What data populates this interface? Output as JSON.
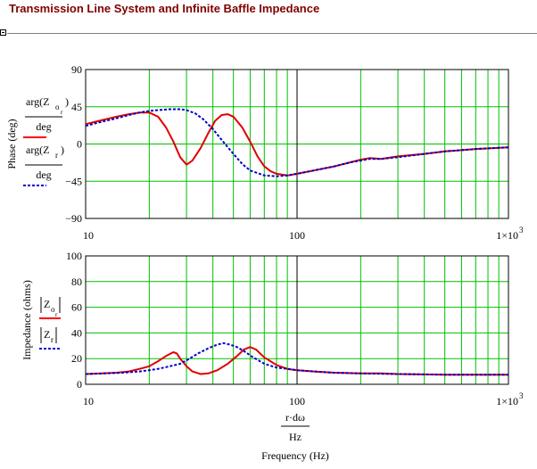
{
  "page": {
    "title": "Transmission Line System and Infinite Baffle Impedance",
    "accent_color": "#800000",
    "region_marker_icon": "collapse-box-icon"
  },
  "chart_data": [
    {
      "type": "line",
      "xscale": "log",
      "xlim": [
        10,
        1000
      ],
      "ylim": [
        -90,
        90
      ],
      "grid": true,
      "grid_color": "#00c000",
      "ylabel": "Phase (deg)",
      "yticks": [
        "90",
        "45",
        "0",
        "−45",
        "−90"
      ],
      "ytick_values": [
        90,
        45,
        0,
        -45,
        -90
      ],
      "xticks": [
        "10",
        "100",
        "1×10"
      ],
      "xtick_exp": "3",
      "legend": [
        {
          "num_fn": "arg",
          "var": "Z",
          "sub": "o",
          "subsub": "r",
          "den": "deg",
          "color": "#ff0000",
          "style": "solid"
        },
        {
          "num_fn": "arg",
          "var": "Z",
          "sub": "r",
          "subsub": "",
          "den": "deg",
          "color": "#0000cc",
          "style": "dotted"
        }
      ],
      "series": [
        {
          "color": "#e00000",
          "style": "solid",
          "points": [
            [
              10,
              24
            ],
            [
              12,
              29
            ],
            [
              14,
              33
            ],
            [
              16,
              36
            ],
            [
              18,
              38
            ],
            [
              20,
              38
            ],
            [
              22,
              33
            ],
            [
              24,
              20
            ],
            [
              26,
              3
            ],
            [
              28,
              -16
            ],
            [
              30,
              -25
            ],
            [
              32,
              -20
            ],
            [
              35,
              -5
            ],
            [
              38,
              13
            ],
            [
              41,
              28
            ],
            [
              44,
              35
            ],
            [
              47,
              36
            ],
            [
              50,
              33
            ],
            [
              55,
              20
            ],
            [
              60,
              3
            ],
            [
              65,
              -15
            ],
            [
              70,
              -27
            ],
            [
              75,
              -33
            ],
            [
              80,
              -36
            ],
            [
              90,
              -38
            ],
            [
              100,
              -36
            ],
            [
              120,
              -32
            ],
            [
              150,
              -27
            ],
            [
              180,
              -22
            ],
            [
              200,
              -19
            ],
            [
              220,
              -17
            ],
            [
              250,
              -18
            ],
            [
              300,
              -15
            ],
            [
              400,
              -12
            ],
            [
              500,
              -9
            ],
            [
              700,
              -6
            ],
            [
              1000,
              -4
            ]
          ]
        },
        {
          "color": "#0000cc",
          "style": "dotted",
          "points": [
            [
              10,
              22
            ],
            [
              12,
              27
            ],
            [
              14,
              31
            ],
            [
              16,
              35
            ],
            [
              18,
              38
            ],
            [
              20,
              40
            ],
            [
              22,
              41
            ],
            [
              25,
              42
            ],
            [
              28,
              42
            ],
            [
              30,
              41
            ],
            [
              33,
              37
            ],
            [
              36,
              30
            ],
            [
              40,
              18
            ],
            [
              44,
              5
            ],
            [
              50,
              -12
            ],
            [
              55,
              -24
            ],
            [
              60,
              -32
            ],
            [
              70,
              -38
            ],
            [
              80,
              -39
            ],
            [
              90,
              -38
            ],
            [
              100,
              -36
            ],
            [
              120,
              -32
            ],
            [
              150,
              -27
            ],
            [
              180,
              -22
            ],
            [
              200,
              -20
            ],
            [
              220,
              -18
            ],
            [
              250,
              -18
            ],
            [
              300,
              -16
            ],
            [
              400,
              -12
            ],
            [
              500,
              -9
            ],
            [
              700,
              -6
            ],
            [
              1000,
              -4
            ]
          ]
        }
      ]
    },
    {
      "type": "line",
      "xscale": "log",
      "xlim": [
        10,
        1000
      ],
      "ylim": [
        0,
        100
      ],
      "grid": true,
      "grid_color": "#00c000",
      "ylabel": "Impedance (ohms)",
      "yticks": [
        "100",
        "80",
        "60",
        "40",
        "20",
        "0"
      ],
      "ytick_values": [
        100,
        80,
        60,
        40,
        20,
        0
      ],
      "xticks": [
        "10",
        "100",
        "1×10"
      ],
      "xtick_exp": "3",
      "xlabel_num": "r·dω",
      "xlabel_den": "Hz",
      "xlabel": "Frequency (Hz)",
      "legend": [
        {
          "var": "Z",
          "sub": "o",
          "subsub": "r",
          "color": "#ff0000",
          "style": "solid"
        },
        {
          "var": "Z",
          "sub": "r",
          "subsub": "",
          "color": "#0000cc",
          "style": "dotted"
        }
      ],
      "series": [
        {
          "color": "#e00000",
          "style": "solid",
          "points": [
            [
              10,
              8
            ],
            [
              12,
              8.5
            ],
            [
              14,
              9
            ],
            [
              16,
              10
            ],
            [
              18,
              12
            ],
            [
              20,
              14
            ],
            [
              22,
              18
            ],
            [
              24,
              22
            ],
            [
              26,
              25
            ],
            [
              27,
              24
            ],
            [
              28,
              20
            ],
            [
              30,
              14
            ],
            [
              32,
              10
            ],
            [
              35,
              8
            ],
            [
              38,
              8.5
            ],
            [
              42,
              11
            ],
            [
              47,
              16
            ],
            [
              52,
              22
            ],
            [
              56,
              27
            ],
            [
              60,
              29
            ],
            [
              64,
              27
            ],
            [
              70,
              21
            ],
            [
              80,
              15
            ],
            [
              90,
              12
            ],
            [
              100,
              11
            ],
            [
              120,
              10
            ],
            [
              150,
              9
            ],
            [
              200,
              8.5
            ],
            [
              250,
              8.5
            ],
            [
              300,
              8
            ],
            [
              500,
              7.5
            ],
            [
              1000,
              7.5
            ]
          ]
        },
        {
          "color": "#0000cc",
          "style": "dotted",
          "points": [
            [
              10,
              8
            ],
            [
              12,
              8.5
            ],
            [
              15,
              9
            ],
            [
              18,
              10
            ],
            [
              20,
              11
            ],
            [
              22,
              12
            ],
            [
              25,
              14
            ],
            [
              28,
              16
            ],
            [
              31,
              20
            ],
            [
              34,
              24
            ],
            [
              38,
              28
            ],
            [
              42,
              31
            ],
            [
              45,
              32
            ],
            [
              48,
              31
            ],
            [
              52,
              29
            ],
            [
              56,
              26
            ],
            [
              62,
              21
            ],
            [
              70,
              16
            ],
            [
              80,
              13
            ],
            [
              90,
              12
            ],
            [
              100,
              11
            ],
            [
              120,
              10
            ],
            [
              150,
              9
            ],
            [
              200,
              8.5
            ],
            [
              300,
              8
            ],
            [
              500,
              7.5
            ],
            [
              1000,
              7.5
            ]
          ]
        }
      ]
    }
  ]
}
